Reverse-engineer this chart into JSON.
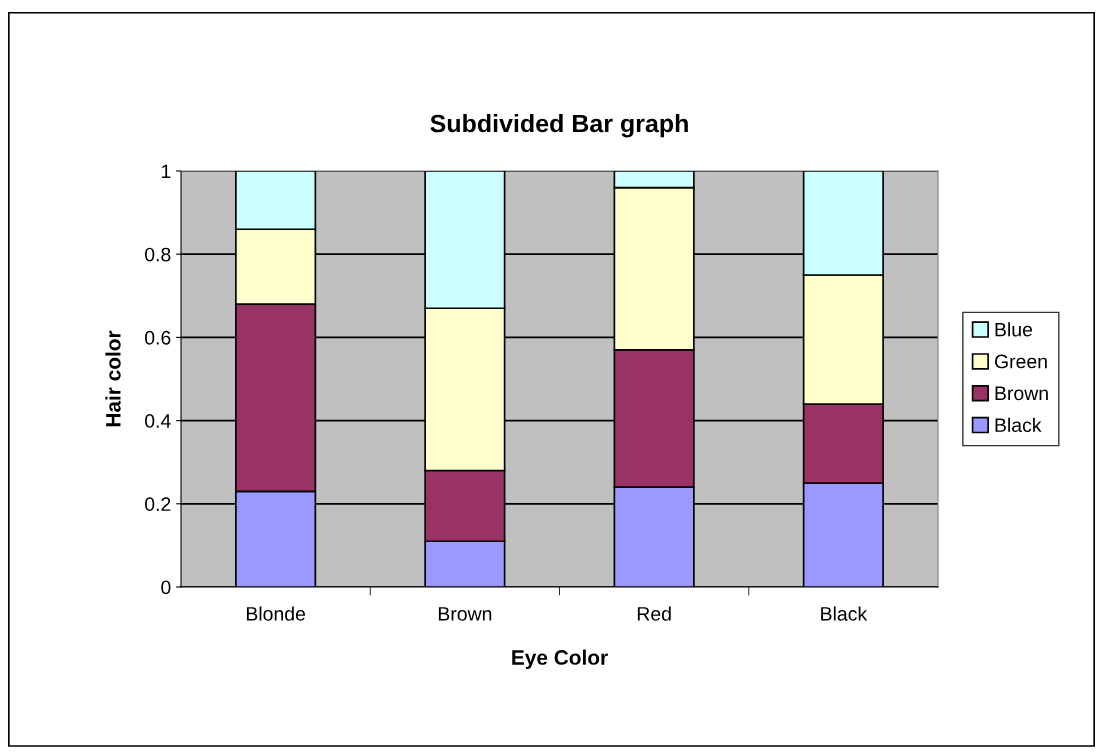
{
  "chart_data": {
    "type": "bar",
    "stacked": true,
    "title": "Subdivided Bar graph",
    "xlabel": "Eye Color",
    "ylabel": "Hair color",
    "categories": [
      "Blonde",
      "Brown",
      "Red",
      "Black"
    ],
    "series": [
      {
        "name": "Black",
        "color": "#9999ff",
        "values": [
          0.23,
          0.11,
          0.24,
          0.25
        ]
      },
      {
        "name": "Brown",
        "color": "#993366",
        "values": [
          0.45,
          0.17,
          0.33,
          0.19
        ]
      },
      {
        "name": "Green",
        "color": "#ffffcc",
        "values": [
          0.18,
          0.39,
          0.39,
          0.31
        ]
      },
      {
        "name": "Blue",
        "color": "#ccffff",
        "values": [
          0.14,
          0.33,
          0.04,
          0.25
        ]
      }
    ],
    "ylim": [
      0,
      1
    ],
    "yticks": [
      0,
      0.2,
      0.4,
      0.6,
      0.8,
      1
    ],
    "grid": "y",
    "legend": "right"
  }
}
